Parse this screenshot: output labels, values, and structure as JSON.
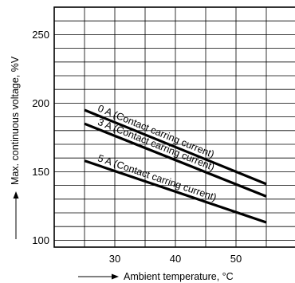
{
  "chart_data": {
    "type": "line",
    "xlabel": "Ambient temperature, °C",
    "ylabel": "Max. continuous voltage, %V",
    "xlim": [
      20,
      60
    ],
    "ylim": [
      95,
      270
    ],
    "x_ticks": [
      30,
      40,
      50
    ],
    "y_ticks": [
      100,
      150,
      200,
      250
    ],
    "grid": true,
    "series": [
      {
        "name": "0 A (Contact carring current)",
        "x": [
          25,
          55
        ],
        "y": [
          195,
          141
        ]
      },
      {
        "name": "3 A (Contact carring current)",
        "x": [
          25,
          55
        ],
        "y": [
          185,
          132
        ]
      },
      {
        "name": "5 A (Contact carring current)",
        "x": [
          25,
          55
        ],
        "y": [
          158,
          113
        ]
      }
    ]
  }
}
